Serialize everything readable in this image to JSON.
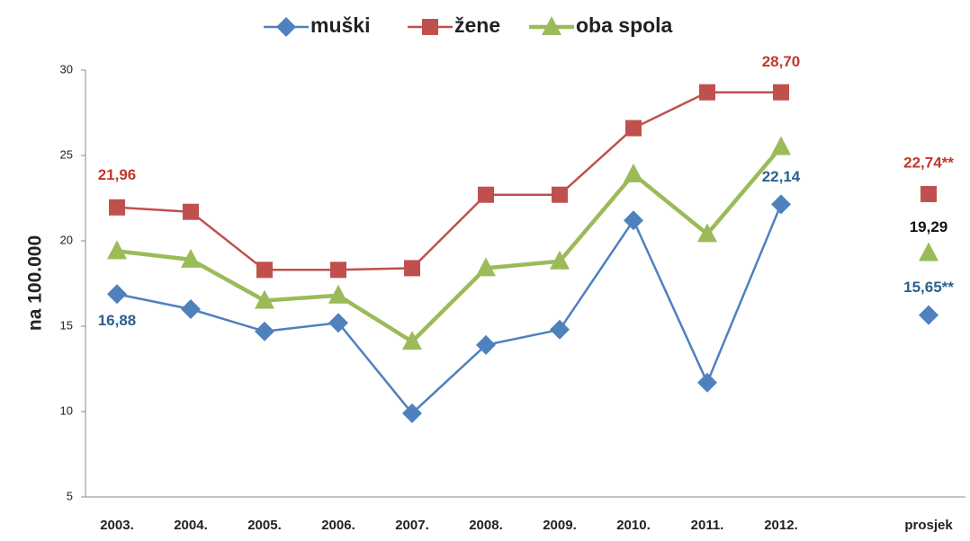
{
  "chart_data": {
    "type": "line",
    "y_label": "na 100.000",
    "categories": [
      "2003.",
      "2004.",
      "2005.",
      "2006.",
      "2007.",
      "2008.",
      "2009.",
      "2010.",
      "2011.",
      "2012.",
      null,
      "prosjek"
    ],
    "series": [
      {
        "name": "muški",
        "color": "#4f81bd",
        "label_color": "#2e5f8f",
        "marker": "diamond",
        "values": [
          16.88,
          16.0,
          14.7,
          15.2,
          9.9,
          13.9,
          14.8,
          21.2,
          11.7,
          22.14,
          null,
          15.65
        ],
        "value_labels": [
          "16,88",
          null,
          null,
          null,
          null,
          null,
          null,
          null,
          null,
          "22,14",
          null,
          "15,65**"
        ]
      },
      {
        "name": "žene",
        "color": "#c0504d",
        "label_color": "#c0392b",
        "marker": "square",
        "values": [
          21.96,
          21.7,
          18.3,
          18.3,
          18.4,
          22.7,
          22.7,
          26.6,
          28.7,
          28.7,
          null,
          22.74
        ],
        "value_labels": [
          "21,96",
          null,
          null,
          null,
          null,
          null,
          null,
          null,
          null,
          "28,70",
          null,
          "22,74**"
        ]
      },
      {
        "name": "oba spola",
        "color": "#9bbb59",
        "label_color": "#111111",
        "marker": "triangle",
        "values": [
          19.4,
          18.9,
          16.5,
          16.8,
          14.1,
          18.4,
          18.8,
          23.9,
          20.4,
          25.5,
          null,
          19.29
        ],
        "value_labels": [
          null,
          null,
          null,
          null,
          null,
          null,
          null,
          null,
          null,
          null,
          null,
          "19,29"
        ]
      }
    ],
    "ylim": [
      5,
      30
    ],
    "yticks": [
      5,
      10,
      15,
      20,
      25,
      30
    ],
    "grid": false,
    "legend": "top"
  }
}
